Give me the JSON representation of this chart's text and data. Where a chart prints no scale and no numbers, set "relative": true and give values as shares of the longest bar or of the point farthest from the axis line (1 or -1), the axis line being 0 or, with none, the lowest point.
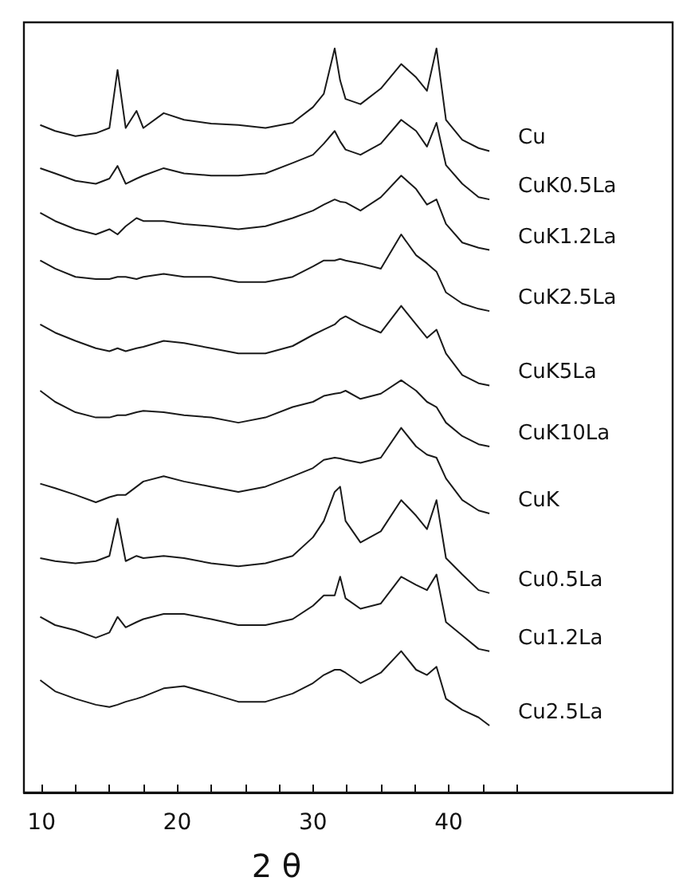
{
  "chart_data": {
    "type": "line",
    "relative": true,
    "xlabel": "2 θ",
    "xlim": [
      8.7,
      56.5
    ],
    "xticks": [
      10,
      {
        "value": 12.5,
        "label": null
      },
      {
        "value": 15,
        "label": null
      },
      {
        "value": 17.5,
        "label": null
      },
      20,
      {
        "value": 22.5,
        "label": null
      },
      {
        "value": 25,
        "label": null
      },
      {
        "value": 27.5,
        "label": null
      },
      30,
      {
        "value": 32.5,
        "label": null
      },
      {
        "value": 35,
        "label": null
      },
      {
        "value": 37.5,
        "label": null
      },
      40,
      {
        "value": 42.5,
        "label": null
      },
      {
        "value": 45,
        "label": null
      }
    ],
    "x": [
      9.9,
      11,
      12.5,
      14,
      15,
      15.6,
      16.2,
      17,
      17.5,
      19,
      20.5,
      22.5,
      24.5,
      26.5,
      28.5,
      30,
      30.8,
      31.6,
      32.0,
      32.4,
      33.5,
      35,
      36.5,
      37.6,
      38.4,
      39.1,
      39.8,
      41,
      42.2,
      43
    ],
    "series": [
      {
        "name": "Cu",
        "color": "#1a1a1a",
        "values": [
          0.897,
          0.889,
          0.882,
          0.886,
          0.893,
          0.971,
          0.893,
          0.916,
          0.893,
          0.913,
          0.904,
          0.899,
          0.897,
          0.893,
          0.9,
          0.921,
          0.939,
          1.0,
          0.957,
          0.932,
          0.925,
          0.946,
          0.979,
          0.961,
          0.943,
          1.0,
          0.904,
          0.877,
          0.866,
          0.862
        ]
      },
      {
        "name": "CuK0.5La",
        "color": "#1a1a1a",
        "values": [
          0.839,
          0.832,
          0.822,
          0.818,
          0.825,
          0.842,
          0.818,
          0.825,
          0.829,
          0.839,
          0.832,
          0.829,
          0.829,
          0.832,
          0.846,
          0.857,
          0.872,
          0.889,
          0.875,
          0.864,
          0.857,
          0.872,
          0.904,
          0.889,
          0.868,
          0.9,
          0.843,
          0.818,
          0.8,
          0.797
        ]
      },
      {
        "name": "CuK1.2La",
        "color": "#1a1a1a",
        "values": [
          0.779,
          0.768,
          0.757,
          0.75,
          0.757,
          0.75,
          0.761,
          0.772,
          0.768,
          0.768,
          0.764,
          0.761,
          0.757,
          0.761,
          0.772,
          0.782,
          0.79,
          0.797,
          0.794,
          0.793,
          0.782,
          0.8,
          0.829,
          0.811,
          0.79,
          0.797,
          0.764,
          0.739,
          0.732,
          0.729
        ]
      },
      {
        "name": "CuK2.5La",
        "color": "#1a1a1a",
        "values": [
          0.715,
          0.704,
          0.693,
          0.69,
          0.69,
          0.693,
          0.693,
          0.69,
          0.693,
          0.697,
          0.693,
          0.693,
          0.686,
          0.686,
          0.693,
          0.707,
          0.715,
          0.715,
          0.717,
          0.715,
          0.711,
          0.704,
          0.75,
          0.722,
          0.711,
          0.7,
          0.672,
          0.657,
          0.65,
          0.647
        ]
      },
      {
        "name": "CuK5La",
        "color": "#1a1a1a",
        "values": [
          0.629,
          0.618,
          0.607,
          0.597,
          0.593,
          0.597,
          0.593,
          0.597,
          0.599,
          0.607,
          0.604,
          0.597,
          0.59,
          0.59,
          0.6,
          0.615,
          0.622,
          0.629,
          0.636,
          0.64,
          0.629,
          0.618,
          0.654,
          0.629,
          0.611,
          0.622,
          0.59,
          0.561,
          0.55,
          0.547
        ]
      },
      {
        "name": "CuK10La",
        "color": "#1a1a1a",
        "values": [
          0.54,
          0.525,
          0.511,
          0.504,
          0.504,
          0.507,
          0.507,
          0.511,
          0.513,
          0.511,
          0.507,
          0.504,
          0.497,
          0.504,
          0.518,
          0.525,
          0.533,
          0.536,
          0.537,
          0.54,
          0.529,
          0.536,
          0.554,
          0.54,
          0.525,
          0.518,
          0.497,
          0.479,
          0.468,
          0.465
        ]
      },
      {
        "name": "CuK",
        "color": "#1a1a1a",
        "values": [
          0.415,
          0.409,
          0.4,
          0.39,
          0.397,
          0.4,
          0.4,
          0.411,
          0.418,
          0.425,
          0.418,
          0.411,
          0.404,
          0.411,
          0.425,
          0.436,
          0.447,
          0.45,
          0.449,
          0.447,
          0.443,
          0.45,
          0.49,
          0.465,
          0.454,
          0.45,
          0.422,
          0.393,
          0.379,
          0.375
        ]
      },
      {
        "name": "Cu0.5La",
        "color": "#1a1a1a",
        "values": [
          0.315,
          0.311,
          0.308,
          0.311,
          0.318,
          0.368,
          0.311,
          0.318,
          0.315,
          0.318,
          0.315,
          0.308,
          0.304,
          0.308,
          0.318,
          0.343,
          0.365,
          0.404,
          0.411,
          0.365,
          0.336,
          0.351,
          0.393,
          0.372,
          0.354,
          0.393,
          0.315,
          0.293,
          0.272,
          0.268
        ]
      },
      {
        "name": "Cu1.2La",
        "color": "#1a1a1a",
        "values": [
          0.236,
          0.225,
          0.218,
          0.208,
          0.215,
          0.236,
          0.222,
          0.229,
          0.233,
          0.24,
          0.24,
          0.233,
          0.225,
          0.225,
          0.233,
          0.251,
          0.265,
          0.265,
          0.29,
          0.261,
          0.247,
          0.254,
          0.29,
          0.279,
          0.272,
          0.293,
          0.229,
          0.211,
          0.193,
          0.19
        ]
      },
      {
        "name": "Cu2.5La",
        "color": "#1a1a1a",
        "values": [
          0.151,
          0.136,
          0.126,
          0.118,
          0.115,
          0.118,
          0.122,
          0.126,
          0.129,
          0.14,
          0.143,
          0.133,
          0.122,
          0.122,
          0.133,
          0.147,
          0.158,
          0.165,
          0.165,
          0.161,
          0.147,
          0.161,
          0.19,
          0.165,
          0.158,
          0.169,
          0.126,
          0.111,
          0.101,
          0.09
        ]
      }
    ]
  }
}
